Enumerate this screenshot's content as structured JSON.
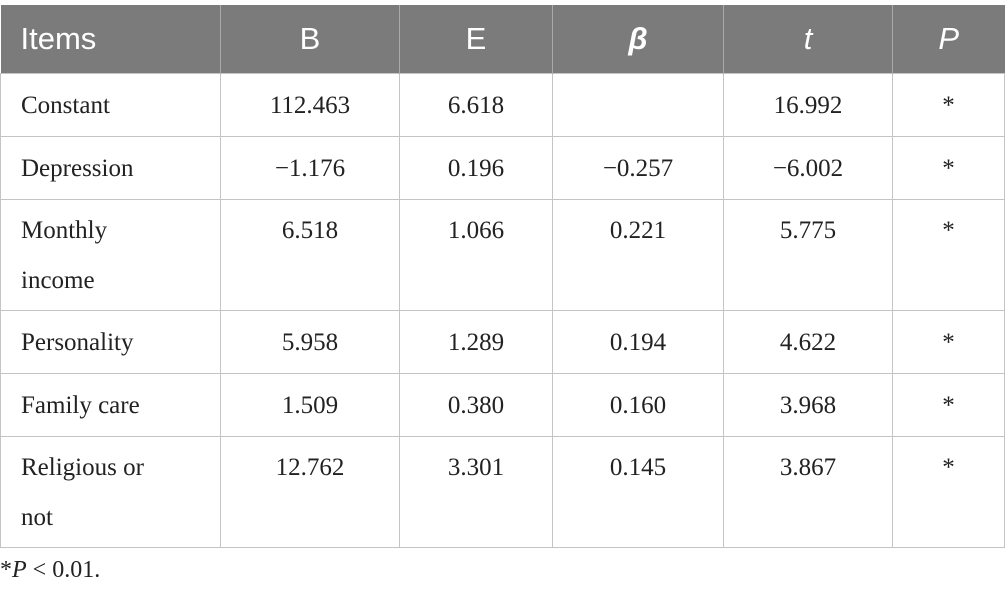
{
  "table": {
    "headers": [
      "Items",
      "B",
      "E",
      "β",
      "t",
      "P"
    ],
    "rows": [
      {
        "item": "Constant",
        "b": "112.463",
        "e": "6.618",
        "beta": "",
        "t": "16.992",
        "p": "*"
      },
      {
        "item": "Depression",
        "b": "−1.176",
        "e": "0.196",
        "beta": "−0.257",
        "t": "−6.002",
        "p": "*"
      },
      {
        "item_line1": "Monthly",
        "item_line2": "income",
        "b": "6.518",
        "e": "1.066",
        "beta": "0.221",
        "t": "5.775",
        "p": "*"
      },
      {
        "item": "Personality",
        "b": "5.958",
        "e": "1.289",
        "beta": "0.194",
        "t": "4.622",
        "p": "*"
      },
      {
        "item": "Family care",
        "b": "1.509",
        "e": "0.380",
        "beta": "0.160",
        "t": "3.968",
        "p": "*"
      },
      {
        "item_line1": "Religious or",
        "item_line2": "not",
        "b": "12.762",
        "e": "3.301",
        "beta": "0.145",
        "t": "3.867",
        "p": "*"
      }
    ]
  },
  "footnote": {
    "star": "*",
    "p_symbol": "P",
    "rest": " < 0.01."
  },
  "colors": {
    "header_bg": "#7b7b7b",
    "header_text": "#ffffff",
    "grid": "#c4c4c4",
    "text": "#222222"
  }
}
